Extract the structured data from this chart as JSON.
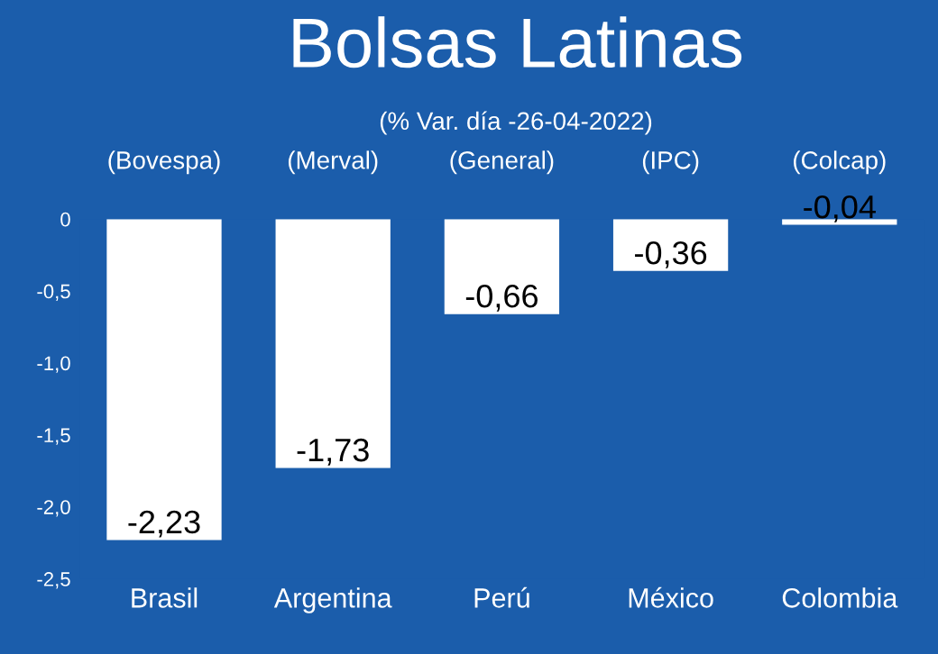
{
  "chart_data": {
    "type": "bar",
    "title": "Bolsas Latinas",
    "subtitle": "(% Var. día -26-04-2022)",
    "categories": [
      "Brasil",
      "Argentina",
      "Perú",
      "México",
      "Colombia"
    ],
    "values": [
      -2.23,
      -1.73,
      -0.66,
      -0.36,
      -0.04
    ],
    "value_labels": [
      "-2,23",
      "-1,73",
      "-0,66",
      "-0,36",
      "-0,04"
    ],
    "annotations": [
      "(Bovespa)",
      "(Merval)",
      "(General)",
      "(IPC)",
      "(Colcap)"
    ],
    "color": "#ffffff",
    "ylim": [
      -2.5,
      0
    ],
    "yticks": [
      0,
      {
        "value": -0.5,
        "label": "-0,5"
      },
      {
        "value": -1.0,
        "label": "-1,0"
      },
      {
        "value": -1.5,
        "label": "-1,5"
      },
      {
        "value": -2.0,
        "label": "-2,0"
      },
      {
        "value": -2.5,
        "label": "-2,5"
      }
    ],
    "grid": false,
    "legend": false
  }
}
